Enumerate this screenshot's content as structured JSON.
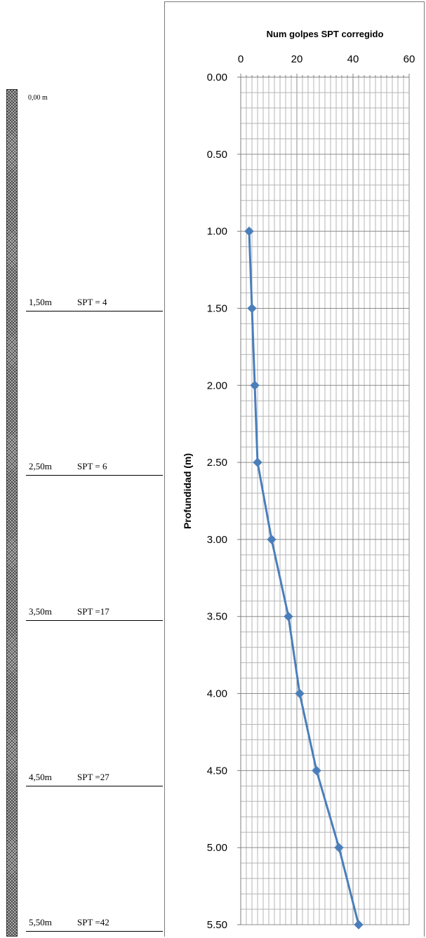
{
  "soil_profile": {
    "top_depth_label": "0,00 m",
    "layers": [
      {
        "depth_label": "1,50m",
        "spt_label": "SPT = 4"
      },
      {
        "depth_label": "2,50m",
        "spt_label": "SPT = 6"
      },
      {
        "depth_label": "3,50m",
        "spt_label": "SPT =17"
      },
      {
        "depth_label": "4,50m",
        "spt_label": "SPT =27"
      },
      {
        "depth_label": "5,50m",
        "spt_label": "SPT =42"
      }
    ]
  },
  "chart_data": {
    "type": "line",
    "title": "Num golpes SPT corregido",
    "ylabel": "Profundidad (m)",
    "xlim": [
      0,
      60
    ],
    "ylim": [
      0,
      5.5
    ],
    "y_inverted": true,
    "x_axis_position": "top",
    "grid": true,
    "x_ticks": [
      "0",
      "20",
      "40",
      "60"
    ],
    "y_ticks": [
      "0.00",
      "0.50",
      "1.00",
      "1.50",
      "2.00",
      "2.50",
      "3.00",
      "3.50",
      "4.00",
      "4.50",
      "5.00",
      "5.50"
    ],
    "series": [
      {
        "color": "#4a7ebb",
        "marker": "diamond",
        "points": [
          {
            "x": 3,
            "y": 1.0
          },
          {
            "x": 4,
            "y": 1.5
          },
          {
            "x": 5,
            "y": 2.0
          },
          {
            "x": 6,
            "y": 2.5
          },
          {
            "x": 11,
            "y": 3.0
          },
          {
            "x": 17,
            "y": 3.5
          },
          {
            "x": 21,
            "y": 4.0
          },
          {
            "x": 27,
            "y": 4.5
          },
          {
            "x": 35,
            "y": 5.0
          },
          {
            "x": 42,
            "y": 5.5
          }
        ]
      }
    ]
  }
}
